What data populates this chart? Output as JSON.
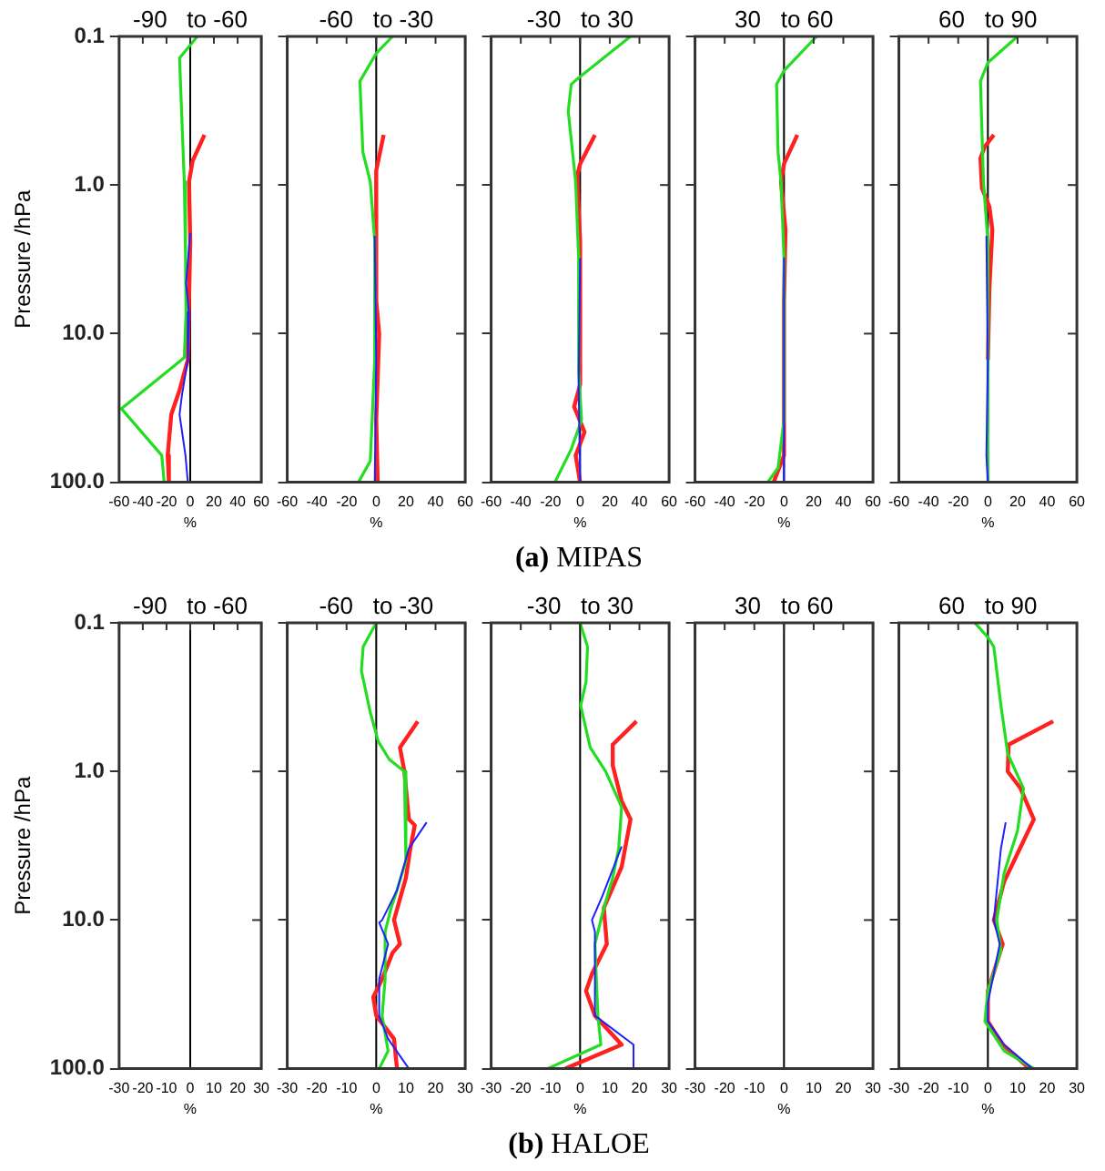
{
  "chart_data": [
    {
      "type": "line",
      "title": "-90   to -60",
      "xlabel": "%",
      "ylabel": "Pressure /hPa",
      "xlim": [
        -60,
        60
      ],
      "xticks": [
        -60,
        -40,
        -20,
        0,
        20,
        40,
        60
      ],
      "ylim": [
        100,
        0.1
      ],
      "yticks": [
        {
          "value": 0.1,
          "label": "0.1"
        },
        {
          "value": 1,
          "label": "1.0"
        },
        {
          "value": 10,
          "label": "10.0"
        },
        {
          "value": 100,
          "label": "100.0"
        }
      ],
      "log": "y",
      "ref_lines": [
        {
          "axis": "x",
          "value": 0,
          "color": "#000000"
        }
      ],
      "series": [
        {
          "color": "#ff2020",
          "x": [
            12,
            2,
            -1,
            0,
            -1,
            -2,
            -9,
            -16,
            -19,
            -18
          ],
          "values": [
            0.46,
            0.69,
            0.95,
            2.4,
            6,
            15,
            24,
            35,
            66,
            100
          ]
        },
        {
          "color": "#22dd22",
          "x": [
            6,
            -9,
            -5,
            -4,
            -3.5,
            -5,
            -58,
            -24,
            -22
          ],
          "values": [
            0.1,
            0.14,
            0.95,
            2.9,
            7.2,
            14.5,
            32,
            66,
            100
          ]
        },
        {
          "color": "#2020ff",
          "x": [
            0,
            -3.5,
            -1,
            -2,
            -7,
            -9,
            -4,
            -2
          ],
          "values": [
            2.1,
            4.6,
            7.2,
            15,
            26,
            35,
            66,
            100
          ]
        }
      ]
    },
    {
      "type": "line",
      "title": "-60   to -30",
      "xlabel": "%",
      "xlim": [
        -60,
        60
      ],
      "xticks": [
        -60,
        -40,
        -20,
        0,
        20,
        40,
        60
      ],
      "ylim": [
        100,
        0.1
      ],
      "yticks": [
        {
          "value": 0.1,
          "label": null
        },
        {
          "value": 1,
          "label": null
        },
        {
          "value": 10,
          "label": null
        },
        {
          "value": 100,
          "label": null
        }
      ],
      "log": "y",
      "tick_labels": "x",
      "ref_lines": [
        {
          "axis": "x",
          "value": 0,
          "color": "#000000"
        }
      ],
      "series": [
        {
          "color": "#ff2020",
          "x": [
            5,
            0,
            0,
            2,
            0,
            1
          ],
          "values": [
            0.46,
            0.8,
            6,
            10,
            38,
            100
          ]
        },
        {
          "color": "#22dd22",
          "x": [
            11,
            0,
            -11,
            -9,
            -4,
            -1,
            -1,
            -4,
            -12
          ],
          "values": [
            0.1,
            0.13,
            0.2,
            0.6,
            0.95,
            2.4,
            15,
            72,
            100
          ]
        },
        {
          "color": "#2020ff",
          "x": [
            -1,
            0,
            -1
          ],
          "values": [
            2.2,
            15,
            100
          ]
        }
      ]
    },
    {
      "type": "line",
      "title": "-30   to 30",
      "xlabel": "%",
      "xlim": [
        -60,
        60
      ],
      "xticks": [
        -60,
        -40,
        -20,
        0,
        20,
        40,
        60
      ],
      "ylim": [
        100,
        0.1
      ],
      "yticks": [
        {
          "value": 0.1,
          "label": null
        },
        {
          "value": 1,
          "label": null
        },
        {
          "value": 10,
          "label": null
        },
        {
          "value": 100,
          "label": null
        }
      ],
      "log": "y",
      "tick_labels": "x",
      "annotations": [
        "(a) MIPAS"
      ],
      "ref_lines": [
        {
          "axis": "x",
          "value": 0,
          "color": "#000000"
        }
      ],
      "series": [
        {
          "color": "#ff2020",
          "x": [
            10,
            0,
            -2,
            0,
            0,
            -4,
            3,
            -3,
            0
          ],
          "values": [
            0.46,
            0.72,
            0.87,
            2.4,
            22,
            31,
            46,
            66,
            100
          ]
        },
        {
          "color": "#22dd22",
          "x": [
            34,
            -1,
            -6,
            -8,
            -3,
            -1,
            -1,
            1,
            -6,
            -17
          ],
          "values": [
            0.1,
            0.19,
            0.21,
            0.32,
            0.95,
            3.1,
            18,
            38,
            60,
            100
          ]
        },
        {
          "color": "#2020ff",
          "x": [
            0,
            -1,
            0
          ],
          "values": [
            3.1,
            22,
            100
          ]
        }
      ]
    },
    {
      "type": "line",
      "title": "30   to 60",
      "xlabel": "%",
      "xlim": [
        -60,
        60
      ],
      "xticks": [
        -60,
        -40,
        -20,
        0,
        20,
        40,
        60
      ],
      "ylim": [
        100,
        0.1
      ],
      "yticks": [
        {
          "value": 0.1,
          "label": null
        },
        {
          "value": 1,
          "label": null
        },
        {
          "value": 10,
          "label": null
        },
        {
          "value": 100,
          "label": null
        }
      ],
      "log": "y",
      "tick_labels": "x",
      "ref_lines": [
        {
          "axis": "x",
          "value": 0,
          "color": "#000000"
        }
      ],
      "series": [
        {
          "color": "#ff2020",
          "x": [
            9,
            0,
            -2,
            1,
            0,
            0,
            -7
          ],
          "values": [
            0.46,
            0.72,
            0.95,
            2,
            6,
            66,
            100
          ]
        },
        {
          "color": "#22dd22",
          "x": [
            22,
            0,
            -5,
            -4,
            -2,
            0,
            0,
            -4,
            -11
          ],
          "values": [
            0.1,
            0.17,
            0.21,
            0.6,
            0.95,
            3.1,
            38,
            80,
            100
          ]
        },
        {
          "color": "#2020ff",
          "x": [
            0,
            0
          ],
          "values": [
            3.1,
            100
          ]
        }
      ]
    },
    {
      "type": "line",
      "title": "60   to 90",
      "xlabel": "%",
      "xlim": [
        -60,
        60
      ],
      "xticks": [
        -60,
        -40,
        -20,
        0,
        20,
        40,
        60
      ],
      "ylim": [
        100,
        0.1
      ],
      "yticks": [
        {
          "value": 0.1,
          "label": null
        },
        {
          "value": 1,
          "label": null
        },
        {
          "value": 10,
          "label": null
        },
        {
          "value": 100,
          "label": null
        }
      ],
      "log": "y",
      "tick_labels": "x",
      "ref_lines": [
        {
          "axis": "x",
          "value": 0,
          "color": "#000000"
        }
      ],
      "series": [
        {
          "color": "#ff2020",
          "x": [
            4,
            -2,
            -5,
            -4,
            1,
            3,
            1,
            0
          ],
          "values": [
            0.46,
            0.55,
            0.66,
            1.05,
            1.4,
            2,
            5,
            15
          ]
        },
        {
          "color": "#22dd22",
          "x": [
            20,
            0,
            -5,
            -3,
            0,
            0
          ],
          "values": [
            0.1,
            0.15,
            0.2,
            0.95,
            2.4,
            100
          ]
        },
        {
          "color": "#2020ff",
          "x": [
            -1,
            0,
            -1,
            0
          ],
          "values": [
            2.2,
            15,
            66,
            100
          ]
        }
      ]
    },
    {
      "type": "line",
      "title": "-90   to -60",
      "xlabel": "%",
      "ylabel": "Pressure /hPa",
      "xlim": [
        -30,
        30
      ],
      "xticks": [
        -30,
        -20,
        -10,
        0,
        10,
        20,
        30
      ],
      "ylim": [
        100,
        0.1
      ],
      "yticks": [
        {
          "value": 0.1,
          "label": "0.1"
        },
        {
          "value": 1,
          "label": "1.0"
        },
        {
          "value": 10,
          "label": "10.0"
        },
        {
          "value": 100,
          "label": "100.0"
        }
      ],
      "log": "y",
      "ref_lines": [
        {
          "axis": "x",
          "value": 0,
          "color": "#000000"
        }
      ]
    },
    {
      "type": "line",
      "title": "-60   to -30",
      "xlabel": "%",
      "xlim": [
        -30,
        30
      ],
      "xticks": [
        -30,
        -20,
        -10,
        0,
        10,
        20,
        30
      ],
      "ylim": [
        100,
        0.1
      ],
      "yticks": [
        {
          "value": 0.1,
          "label": null
        },
        {
          "value": 1,
          "label": null
        },
        {
          "value": 10,
          "label": null
        },
        {
          "value": 100,
          "label": null
        }
      ],
      "log": "y",
      "tick_labels": "x",
      "ref_lines": [
        {
          "axis": "x",
          "value": 0,
          "color": "#000000"
        }
      ],
      "series": [
        {
          "color": "#ff2020",
          "x": [
            14,
            8,
            9.5,
            11,
            13,
            11.5,
            10,
            6,
            8,
            5.5,
            2,
            -1,
            0,
            6,
            7
          ],
          "values": [
            0.46,
            0.69,
            1,
            2.1,
            2.3,
            3.3,
            5.2,
            10,
            14.5,
            16.6,
            25,
            33,
            44,
            63,
            100
          ]
        },
        {
          "color": "#22dd22",
          "x": [
            0,
            -4.4,
            -5,
            -2,
            0.7,
            4.4,
            9.5,
            10,
            7,
            5,
            3,
            3,
            2,
            4,
            1
          ],
          "values": [
            0.1,
            0.145,
            0.21,
            0.4,
            0.63,
            0.83,
            1,
            4,
            6.3,
            8.3,
            12,
            25,
            44,
            76,
            100
          ]
        },
        {
          "color": "#2020ff",
          "x": [
            17,
            11,
            7,
            2,
            1,
            4,
            1,
            1,
            4,
            11
          ],
          "values": [
            2.2,
            3.3,
            6.3,
            10,
            10.4,
            14.5,
            25,
            44,
            63,
            100
          ]
        }
      ]
    },
    {
      "type": "line",
      "title": "-30   to 30",
      "xlabel": "%",
      "xlim": [
        -30,
        30
      ],
      "xticks": [
        -30,
        -20,
        -10,
        0,
        10,
        20,
        30
      ],
      "ylim": [
        100,
        0.1
      ],
      "yticks": [
        {
          "value": 0.1,
          "label": null
        },
        {
          "value": 1,
          "label": null
        },
        {
          "value": 10,
          "label": null
        },
        {
          "value": 100,
          "label": null
        }
      ],
      "log": "y",
      "tick_labels": "x",
      "annotations": [
        "(b) HALOE"
      ],
      "ref_lines": [
        {
          "axis": "x",
          "value": 0,
          "color": "#000000"
        }
      ],
      "series": [
        {
          "color": "#ff2020",
          "x": [
            19,
            11,
            11,
            14,
            17,
            14,
            8,
            9,
            4,
            2,
            5,
            14,
            -5
          ],
          "values": [
            0.46,
            0.66,
            0.91,
            1.58,
            2.1,
            4.4,
            8.3,
            14.5,
            23,
            30,
            44,
            69,
            100
          ]
        },
        {
          "color": "#22dd22",
          "x": [
            0,
            2.5,
            2,
            0.2,
            3.4,
            8.6,
            14,
            13,
            11,
            8,
            5,
            6,
            7,
            -11
          ],
          "values": [
            0.1,
            0.145,
            0.25,
            0.36,
            0.69,
            1,
            1.74,
            3.3,
            5.2,
            8.3,
            14.5,
            44,
            69,
            100
          ]
        },
        {
          "color": "#2020ff",
          "x": [
            14,
            7.5,
            4,
            5,
            5,
            18,
            18
          ],
          "values": [
            3.2,
            6.9,
            10,
            12,
            44,
            69,
            100
          ]
        }
      ]
    },
    {
      "type": "line",
      "title": "30   to 60",
      "xlabel": "%",
      "xlim": [
        -30,
        30
      ],
      "xticks": [
        -30,
        -20,
        -10,
        0,
        10,
        20,
        30
      ],
      "ylim": [
        100,
        0.1
      ],
      "yticks": [
        {
          "value": 0.1,
          "label": null
        },
        {
          "value": 1,
          "label": null
        },
        {
          "value": 10,
          "label": null
        },
        {
          "value": 100,
          "label": null
        }
      ],
      "log": "y",
      "tick_labels": "x",
      "ref_lines": [
        {
          "axis": "x",
          "value": 0,
          "color": "#000000"
        }
      ]
    },
    {
      "type": "line",
      "title": "60   to 90",
      "xlabel": "%",
      "xlim": [
        -30,
        30
      ],
      "xticks": [
        -30,
        -20,
        -10,
        0,
        10,
        20,
        30
      ],
      "ylim": [
        100,
        0.1
      ],
      "yticks": [
        {
          "value": 0.1,
          "label": null
        },
        {
          "value": 1,
          "label": null
        },
        {
          "value": 10,
          "label": null
        },
        {
          "value": 100,
          "label": null
        }
      ],
      "log": "y",
      "tick_labels": "x",
      "ref_lines": [
        {
          "axis": "x",
          "value": 0,
          "color": "#000000"
        }
      ],
      "series": [
        {
          "color": "#ff2020",
          "x": [
            22,
            7,
            6.7,
            11,
            15.5,
            5.5,
            2,
            5,
            0,
            0,
            5,
            14
          ],
          "values": [
            0.46,
            0.66,
            1,
            1.3,
            2.1,
            5.5,
            10,
            14.5,
            30,
            48,
            69,
            100
          ]
        },
        {
          "color": "#22dd22",
          "x": [
            -4.4,
            0,
            2,
            4.4,
            6.7,
            12,
            10,
            5.5,
            3,
            4.4,
            0,
            -1,
            5.5,
            15.5
          ],
          "values": [
            0.1,
            0.125,
            0.145,
            0.36,
            0.76,
            1.3,
            2.5,
            4.8,
            10,
            16,
            30,
            48,
            76,
            100
          ]
        },
        {
          "color": "#2020ff",
          "x": [
            6,
            4.4,
            2,
            4,
            0,
            0,
            5.5,
            15
          ],
          "values": [
            2.2,
            3.3,
            10,
            14.5,
            36,
            48,
            69,
            100
          ]
        }
      ]
    }
  ]
}
